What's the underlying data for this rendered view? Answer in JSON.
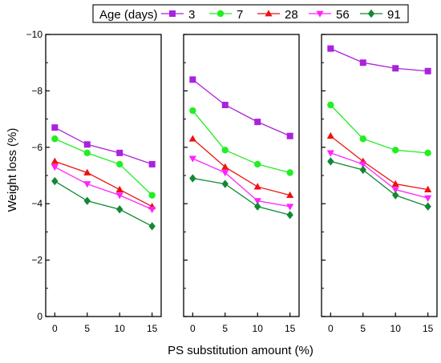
{
  "chart_data": [
    {
      "type": "line",
      "panel": "left",
      "x": [
        0,
        5,
        10,
        15
      ],
      "ylim": [
        0,
        -10
      ],
      "series": [
        {
          "name": "3",
          "values": [
            -6.7,
            -6.1,
            -5.8,
            -5.4
          ]
        },
        {
          "name": "7",
          "values": [
            -6.3,
            -5.8,
            -5.4,
            -4.3
          ]
        },
        {
          "name": "28",
          "values": [
            -5.5,
            -5.1,
            -4.5,
            -3.9
          ]
        },
        {
          "name": "56",
          "values": [
            -5.3,
            -4.7,
            -4.3,
            -3.8
          ]
        },
        {
          "name": "91",
          "values": [
            -4.8,
            -4.1,
            -3.8,
            -3.2
          ]
        }
      ]
    },
    {
      "type": "line",
      "panel": "middle",
      "x": [
        0,
        5,
        10,
        15
      ],
      "ylim": [
        0,
        -10
      ],
      "series": [
        {
          "name": "3",
          "values": [
            -8.4,
            -7.5,
            -6.9,
            -6.4
          ]
        },
        {
          "name": "7",
          "values": [
            -7.3,
            -5.9,
            -5.4,
            -5.1
          ]
        },
        {
          "name": "28",
          "values": [
            -6.3,
            -5.3,
            -4.6,
            -4.3
          ]
        },
        {
          "name": "56",
          "values": [
            -5.6,
            -5.1,
            -4.1,
            -3.9
          ]
        },
        {
          "name": "91",
          "values": [
            -4.9,
            -4.7,
            -3.9,
            -3.6
          ]
        }
      ]
    },
    {
      "type": "line",
      "panel": "right",
      "x": [
        0,
        5,
        10,
        15
      ],
      "ylim": [
        0,
        -10
      ],
      "series": [
        {
          "name": "3",
          "values": [
            -9.5,
            -9.0,
            -8.8,
            -8.7
          ]
        },
        {
          "name": "7",
          "values": [
            -7.5,
            -6.3,
            -5.9,
            -5.8
          ]
        },
        {
          "name": "28",
          "values": [
            -6.4,
            -5.5,
            -4.7,
            -4.5
          ]
        },
        {
          "name": "56",
          "values": [
            -5.8,
            -5.4,
            -4.5,
            -4.2
          ]
        },
        {
          "name": "91",
          "values": [
            -5.5,
            -5.2,
            -4.3,
            -3.9
          ]
        }
      ]
    }
  ],
  "axes": {
    "ylabel": "Weight loss (%)",
    "xlabel": "PS substitution amount (%)",
    "y_ticks": [
      0,
      -2,
      -4,
      -6,
      -8,
      -10
    ],
    "y_tick_labels": [
      "0",
      "−2",
      "−4",
      "−6",
      "−8",
      "−10"
    ],
    "x_tick_labels": [
      "0",
      "5",
      "10",
      "15"
    ],
    "grid": false
  },
  "legend": {
    "title": "Age (days)",
    "placement": "top",
    "entries": [
      {
        "label": "3",
        "color": "#AA22DD",
        "marker": "square"
      },
      {
        "label": "7",
        "color": "#22EE22",
        "marker": "circle"
      },
      {
        "label": "28",
        "color": "#EE1111",
        "marker": "triangle-up"
      },
      {
        "label": "56",
        "color": "#FF22FF",
        "marker": "triangle-down"
      },
      {
        "label": "91",
        "color": "#118833",
        "marker": "diamond"
      }
    ]
  }
}
